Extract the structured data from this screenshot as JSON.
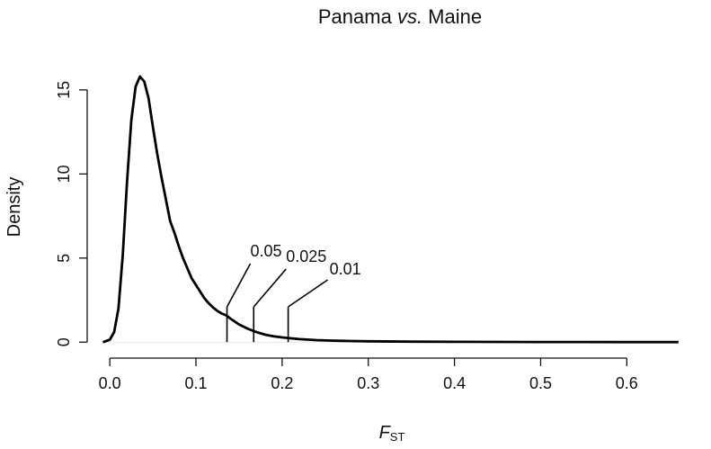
{
  "chart_data": {
    "type": "line",
    "title_main": "Panama ",
    "title_italic": "vs.",
    "title_rest": " Maine",
    "xlabel_italic": "F",
    "xlabel_sub": "ST",
    "ylabel": "Density",
    "xlim": [
      -0.02,
      0.68
    ],
    "ylim": [
      -0.2,
      16.6
    ],
    "xticks": [
      0.0,
      0.1,
      0.2,
      0.3,
      0.4,
      0.5,
      0.6
    ],
    "xtick_labels": [
      "0.0",
      "0.1",
      "0.2",
      "0.3",
      "0.4",
      "0.5",
      "0.6"
    ],
    "yticks": [
      0,
      5,
      10,
      15
    ],
    "ytick_labels": [
      "0",
      "5",
      "10",
      "15"
    ],
    "series": [
      {
        "x": [
          -0.008,
          0.0,
          0.005,
          0.01,
          0.015,
          0.02,
          0.025,
          0.03,
          0.035,
          0.04,
          0.045,
          0.05,
          0.055,
          0.06,
          0.065,
          0.07,
          0.075,
          0.08,
          0.085,
          0.09,
          0.095,
          0.1,
          0.105,
          0.11,
          0.115,
          0.12,
          0.125,
          0.13,
          0.135,
          0.14,
          0.15,
          0.16,
          0.17,
          0.18,
          0.19,
          0.2,
          0.22,
          0.24,
          0.26,
          0.28,
          0.3,
          0.35,
          0.4,
          0.45,
          0.5,
          0.55,
          0.6,
          0.66
        ],
        "y": [
          0.0,
          0.15,
          0.6,
          2.0,
          5.2,
          9.5,
          13.2,
          15.2,
          15.8,
          15.5,
          14.5,
          12.8,
          11.2,
          9.8,
          8.5,
          7.2,
          6.5,
          5.7,
          5.0,
          4.4,
          3.8,
          3.4,
          3.0,
          2.6,
          2.3,
          2.05,
          1.85,
          1.7,
          1.6,
          1.4,
          1.05,
          0.8,
          0.6,
          0.45,
          0.35,
          0.28,
          0.18,
          0.12,
          0.09,
          0.07,
          0.05,
          0.03,
          0.02,
          0.015,
          0.01,
          0.008,
          0.005,
          0.003
        ]
      }
    ],
    "thresholds": [
      {
        "x": 0.136,
        "label": "0.05"
      },
      {
        "x": 0.167,
        "label": "0.025"
      },
      {
        "x": 0.207,
        "label": "0.01"
      }
    ],
    "threshold_top": 2.1
  }
}
